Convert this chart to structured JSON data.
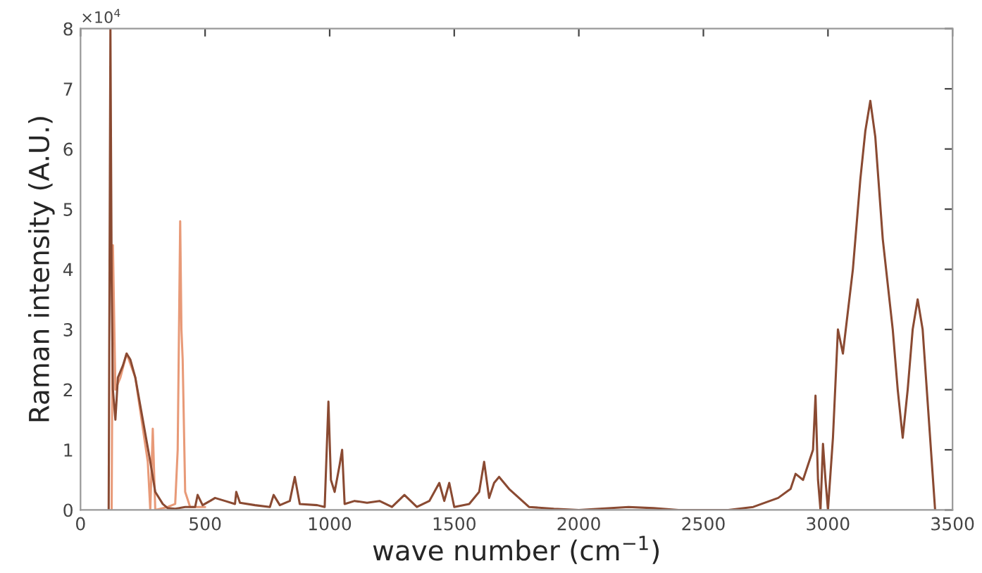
{
  "chart_data": {
    "type": "line",
    "xlabel": "wave number (cm$^{−1}$)",
    "ylabel": "Raman intensity (A.U.)",
    "annotations": [
      "×10$^{4}$"
    ],
    "xlim": [
      0,
      3500
    ],
    "xticks": [
      0,
      500,
      1000,
      1500,
      2000,
      2500,
      3000,
      3500
    ],
    "ylim": [
      0,
      8
    ],
    "yticks": [
      0,
      1,
      2,
      3,
      4,
      5,
      6,
      7,
      8
    ],
    "grid": false,
    "legend": false,
    "series": [
      {
        "color": "#e89a78",
        "x": [
          125,
          130,
          140,
          160,
          185,
          220,
          270,
          280,
          290,
          300,
          350,
          380,
          390,
          400,
          405,
          410,
          420,
          440,
          500
        ],
        "values": [
          0,
          4.4,
          2.0,
          2.2,
          2.6,
          2.2,
          0.8,
          0,
          1.35,
          0,
          0.05,
          0.1,
          1.0,
          4.8,
          3.0,
          2.5,
          0.3,
          0.05,
          0.05
        ]
      },
      {
        "color": "#8a4a32",
        "x": [
          113,
          120,
          125,
          130,
          140,
          150,
          170,
          185,
          200,
          220,
          250,
          280,
          300,
          330,
          350,
          380,
          420,
          460,
          470,
          490,
          520,
          540,
          580,
          620,
          625,
          640,
          700,
          760,
          775,
          800,
          840,
          860,
          880,
          950,
          980,
          995,
          1005,
          1020,
          1040,
          1050,
          1060,
          1100,
          1150,
          1200,
          1250,
          1300,
          1350,
          1400,
          1440,
          1460,
          1480,
          1500,
          1560,
          1600,
          1620,
          1640,
          1660,
          1680,
          1720,
          1800,
          1900,
          2000,
          2200,
          2300,
          2400,
          2600,
          2700,
          2800,
          2850,
          2870,
          2900,
          2940,
          2950,
          2960,
          2970,
          2980,
          2990,
          3000,
          3020,
          3040,
          3060,
          3100,
          3130,
          3150,
          3170,
          3190,
          3220,
          3260,
          3280,
          3300,
          3320,
          3340,
          3360,
          3380,
          3400,
          3430
        ],
        "values": [
          0,
          8.0,
          3.8,
          2.0,
          1.5,
          2.2,
          2.4,
          2.6,
          2.5,
          2.2,
          1.5,
          0.8,
          0.3,
          0.1,
          0.03,
          0.02,
          0.05,
          0.05,
          0.25,
          0.08,
          0.15,
          0.2,
          0.15,
          0.1,
          0.3,
          0.12,
          0.08,
          0.05,
          0.25,
          0.08,
          0.15,
          0.55,
          0.1,
          0.08,
          0.05,
          1.8,
          0.5,
          0.3,
          0.75,
          1.0,
          0.1,
          0.15,
          0.12,
          0.15,
          0.05,
          0.25,
          0.05,
          0.15,
          0.45,
          0.15,
          0.45,
          0.05,
          0.1,
          0.3,
          0.8,
          0.2,
          0.45,
          0.55,
          0.35,
          0.05,
          0.02,
          0,
          0.05,
          0.03,
          0,
          0,
          0.05,
          0.2,
          0.35,
          0.6,
          0.5,
          1.0,
          1.9,
          0.5,
          0,
          1.1,
          0.5,
          0,
          1.2,
          3.0,
          2.6,
          4.0,
          5.5,
          6.3,
          6.8,
          6.2,
          4.5,
          3.0,
          2.0,
          1.2,
          2.0,
          3.0,
          3.5,
          3.0,
          1.8,
          0
        ]
      }
    ]
  }
}
